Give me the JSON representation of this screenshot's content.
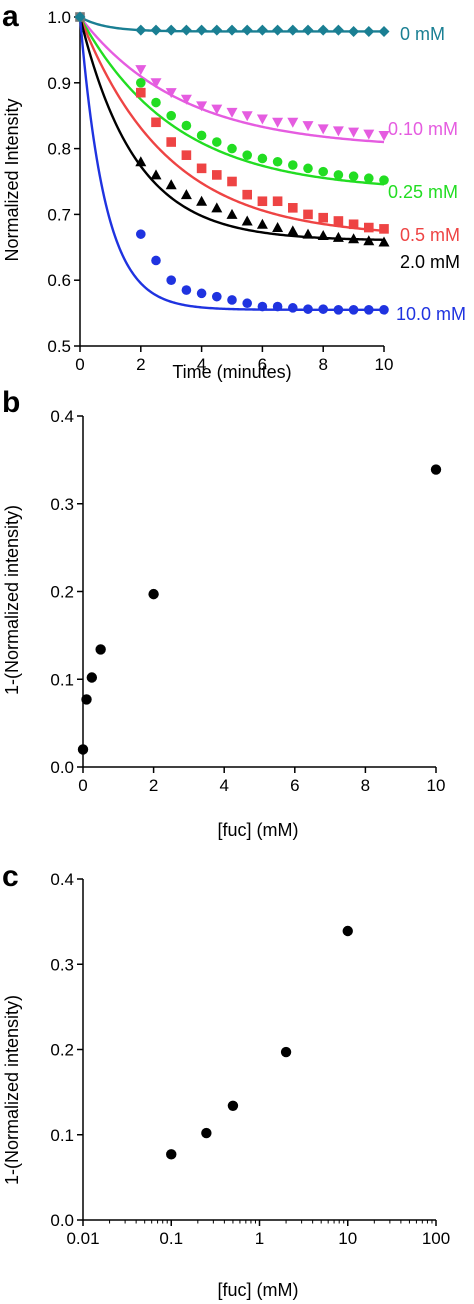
{
  "chart_data": [
    {
      "panel_label": "a",
      "type": "line",
      "xlabel": "Time (minutes)",
      "ylabel": "Normalized Intensity",
      "xlim": [
        0,
        10
      ],
      "ylim": [
        0.5,
        1.0
      ],
      "xticks": [
        "0",
        "2",
        "4",
        "6",
        "8",
        "10"
      ],
      "yticks": [
        "0.5",
        "0.6",
        "0.7",
        "0.8",
        "0.9",
        "1.0"
      ],
      "xtick_values": [
        0,
        2,
        4,
        6,
        8,
        10
      ],
      "ytick_values": [
        0.5,
        0.6,
        0.7,
        0.8,
        0.9,
        1.0
      ],
      "grid": false,
      "legend": "series labels at right end of curves",
      "series": [
        {
          "name": "0 mM",
          "color": "#1a7f93",
          "marker": "diamond",
          "x": [
            0,
            2,
            2.5,
            3,
            3.5,
            4,
            4.5,
            5,
            5.5,
            6,
            6.5,
            7,
            7.5,
            8,
            8.5,
            9,
            9.5,
            10
          ],
          "y": [
            1.0,
            0.98,
            0.98,
            0.98,
            0.98,
            0.98,
            0.98,
            0.98,
            0.98,
            0.98,
            0.98,
            0.98,
            0.98,
            0.98,
            0.98,
            0.978,
            0.978,
            0.978
          ],
          "fit": {
            "y0": 1.0,
            "plateau": 0.978,
            "k": 1.2
          }
        },
        {
          "name": "0.10 mM",
          "color": "#e55ce0",
          "marker": "triangle-down",
          "x": [
            2,
            2.5,
            3,
            3.5,
            4,
            4.5,
            5,
            5.5,
            6,
            6.5,
            7,
            7.5,
            8,
            8.5,
            9,
            9.5,
            10
          ],
          "y": [
            0.92,
            0.9,
            0.885,
            0.875,
            0.865,
            0.86,
            0.855,
            0.85,
            0.845,
            0.84,
            0.84,
            0.835,
            0.83,
            0.827,
            0.825,
            0.822,
            0.82
          ],
          "fit": {
            "y0": 1.0,
            "plateau": 0.8,
            "k": 0.3
          }
        },
        {
          "name": "0.25 mM",
          "color": "#22dd22",
          "marker": "circle",
          "x": [
            2,
            2.5,
            3,
            3.5,
            4,
            4.5,
            5,
            5.5,
            6,
            6.5,
            7,
            7.5,
            8,
            8.5,
            9,
            9.5,
            10
          ],
          "y": [
            0.9,
            0.87,
            0.85,
            0.835,
            0.82,
            0.81,
            0.8,
            0.79,
            0.785,
            0.78,
            0.775,
            0.77,
            0.765,
            0.76,
            0.758,
            0.755,
            0.752
          ],
          "fit": {
            "y0": 1.0,
            "plateau": 0.735,
            "k": 0.32
          }
        },
        {
          "name": "0.5 mM",
          "color": "#ee4444",
          "marker": "square",
          "x": [
            2,
            2.5,
            3,
            3.5,
            4,
            4.5,
            5,
            5.5,
            6,
            6.5,
            7,
            7.5,
            8,
            8.5,
            9,
            9.5,
            10
          ],
          "y": [
            0.885,
            0.84,
            0.81,
            0.79,
            0.77,
            0.76,
            0.75,
            0.73,
            0.72,
            0.72,
            0.71,
            0.7,
            0.695,
            0.69,
            0.685,
            0.68,
            0.678
          ],
          "fit": {
            "y0": 1.0,
            "plateau": 0.665,
            "k": 0.35
          }
        },
        {
          "name": "2.0 mM",
          "color": "#000000",
          "marker": "triangle-up",
          "x": [
            2,
            2.5,
            3,
            3.5,
            4,
            4.5,
            5,
            5.5,
            6,
            6.5,
            7,
            7.5,
            8,
            8.5,
            9,
            9.5,
            10
          ],
          "y": [
            0.78,
            0.76,
            0.745,
            0.73,
            0.72,
            0.71,
            0.7,
            0.69,
            0.685,
            0.68,
            0.675,
            0.67,
            0.668,
            0.665,
            0.663,
            0.66,
            0.658
          ],
          "fit": {
            "y0": 1.0,
            "plateau": 0.66,
            "k": 0.55
          }
        },
        {
          "name": "10.0 mM",
          "color": "#1f33e0",
          "marker": "circle",
          "x": [
            2,
            2.5,
            3,
            3.5,
            4,
            4.5,
            5,
            5.5,
            6,
            6.5,
            7,
            7.5,
            8,
            8.5,
            9,
            9.5,
            10
          ],
          "y": [
            0.67,
            0.63,
            0.6,
            0.585,
            0.58,
            0.575,
            0.57,
            0.565,
            0.56,
            0.56,
            0.558,
            0.556,
            0.556,
            0.555,
            0.555,
            0.555,
            0.555
          ],
          "fit": {
            "y0": 1.0,
            "plateau": 0.555,
            "k": 1.2
          }
        }
      ]
    },
    {
      "panel_label": "b",
      "type": "scatter",
      "xlabel": "[fuc] (mM)",
      "ylabel": "1-(Normalized intensity)",
      "xlim": [
        0,
        10
      ],
      "ylim": [
        0,
        0.4
      ],
      "xticks": [
        "0",
        "2",
        "4",
        "6",
        "8",
        "10"
      ],
      "yticks": [
        "0.0",
        "0.1",
        "0.2",
        "0.3",
        "0.4"
      ],
      "xtick_values": [
        0,
        2,
        4,
        6,
        8,
        10
      ],
      "ytick_values": [
        0,
        0.1,
        0.2,
        0.3,
        0.4
      ],
      "grid": false,
      "series": [
        {
          "color": "#000000",
          "marker": "circle",
          "x": [
            0,
            0.1,
            0.25,
            0.5,
            2.0,
            10.0
          ],
          "y": [
            0.02,
            0.077,
            0.102,
            0.134,
            0.197,
            0.339
          ]
        }
      ]
    },
    {
      "panel_label": "c",
      "type": "scatter",
      "xscale": "log",
      "xlabel": "[fuc] (mM)",
      "ylabel": "1-(Normalized intensity)",
      "xlim": [
        0.01,
        100
      ],
      "ylim": [
        0,
        0.4
      ],
      "xticks": [
        "0.01",
        "0.1",
        "1",
        "10",
        "100"
      ],
      "yticks": [
        "0.0",
        "0.1",
        "0.2",
        "0.3",
        "0.4"
      ],
      "xtick_values": [
        0.01,
        0.1,
        1,
        10,
        100
      ],
      "ytick_values": [
        0,
        0.1,
        0.2,
        0.3,
        0.4
      ],
      "grid": false,
      "series": [
        {
          "color": "#000000",
          "marker": "circle",
          "x": [
            0.1,
            0.25,
            0.5,
            2.0,
            10.0
          ],
          "y": [
            0.077,
            0.102,
            0.134,
            0.197,
            0.339
          ]
        }
      ]
    }
  ]
}
